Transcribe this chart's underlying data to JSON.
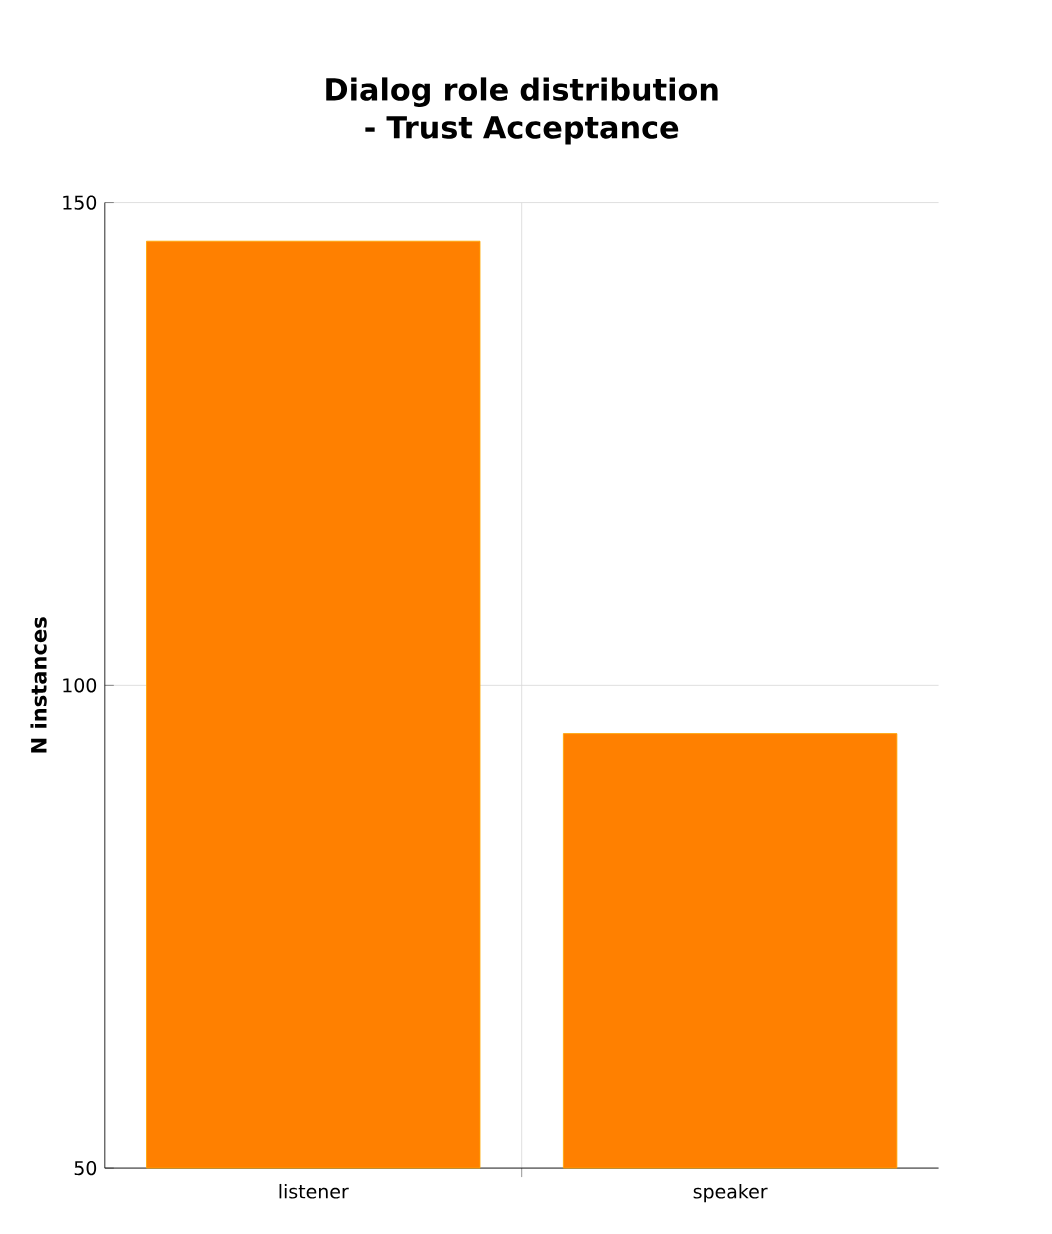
{
  "chart_data": {
    "type": "bar",
    "title": "Dialog role distribution - Trust Acceptance",
    "ylabel": "N instances",
    "categories": [
      "listener",
      "speaker"
    ],
    "values": [
      146,
      95
    ],
    "color": "#ff8000",
    "ylim": [
      50,
      150
    ],
    "yticks": [
      50,
      100,
      150
    ],
    "grid": true
  }
}
